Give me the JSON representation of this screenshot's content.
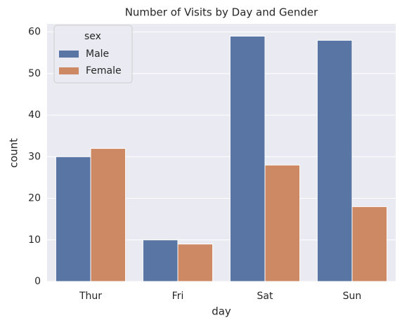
{
  "chart_data": {
    "type": "bar",
    "title": "Number of Visits by Day and Gender",
    "xlabel": "day",
    "ylabel": "count",
    "categories": [
      "Thur",
      "Fri",
      "Sat",
      "Sun"
    ],
    "legend_title": "sex",
    "legend_position": "upper left",
    "series": [
      {
        "name": "Male",
        "color": "#5975a4",
        "values": [
          30,
          10,
          59,
          58
        ]
      },
      {
        "name": "Female",
        "color": "#cc8963",
        "values": [
          32,
          9,
          28,
          18
        ]
      }
    ],
    "ylim": [
      0,
      61.95
    ],
    "yticks": [
      0,
      10,
      20,
      30,
      40,
      50,
      60
    ],
    "grid": true
  }
}
